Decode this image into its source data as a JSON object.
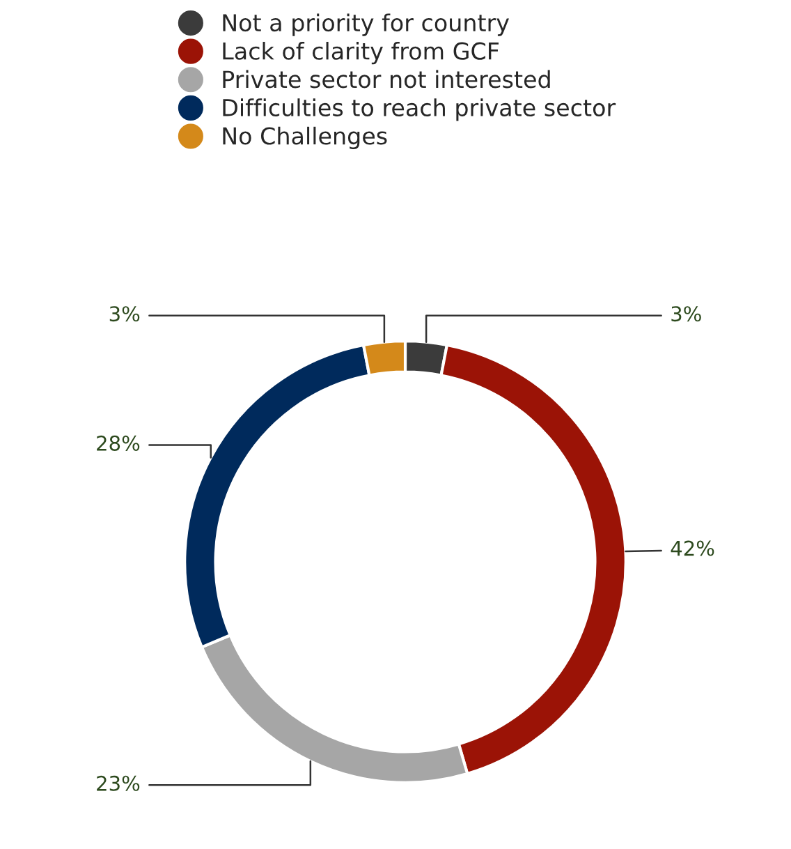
{
  "chart_data": {
    "type": "donut",
    "categories": [
      "Not a priority for country",
      "Lack of clarity from GCF",
      "Private sector not interested",
      "Difficulties to reach private sector",
      "No Challenges"
    ],
    "values": [
      3,
      42,
      23,
      28,
      3
    ],
    "colors": [
      "#3b3b3b",
      "#9b1306",
      "#a6a6a6",
      "#002a5c",
      "#d4891a"
    ],
    "value_labels": [
      "3%",
      "42%",
      "23%",
      "28%",
      "3%"
    ],
    "legend": "top"
  }
}
